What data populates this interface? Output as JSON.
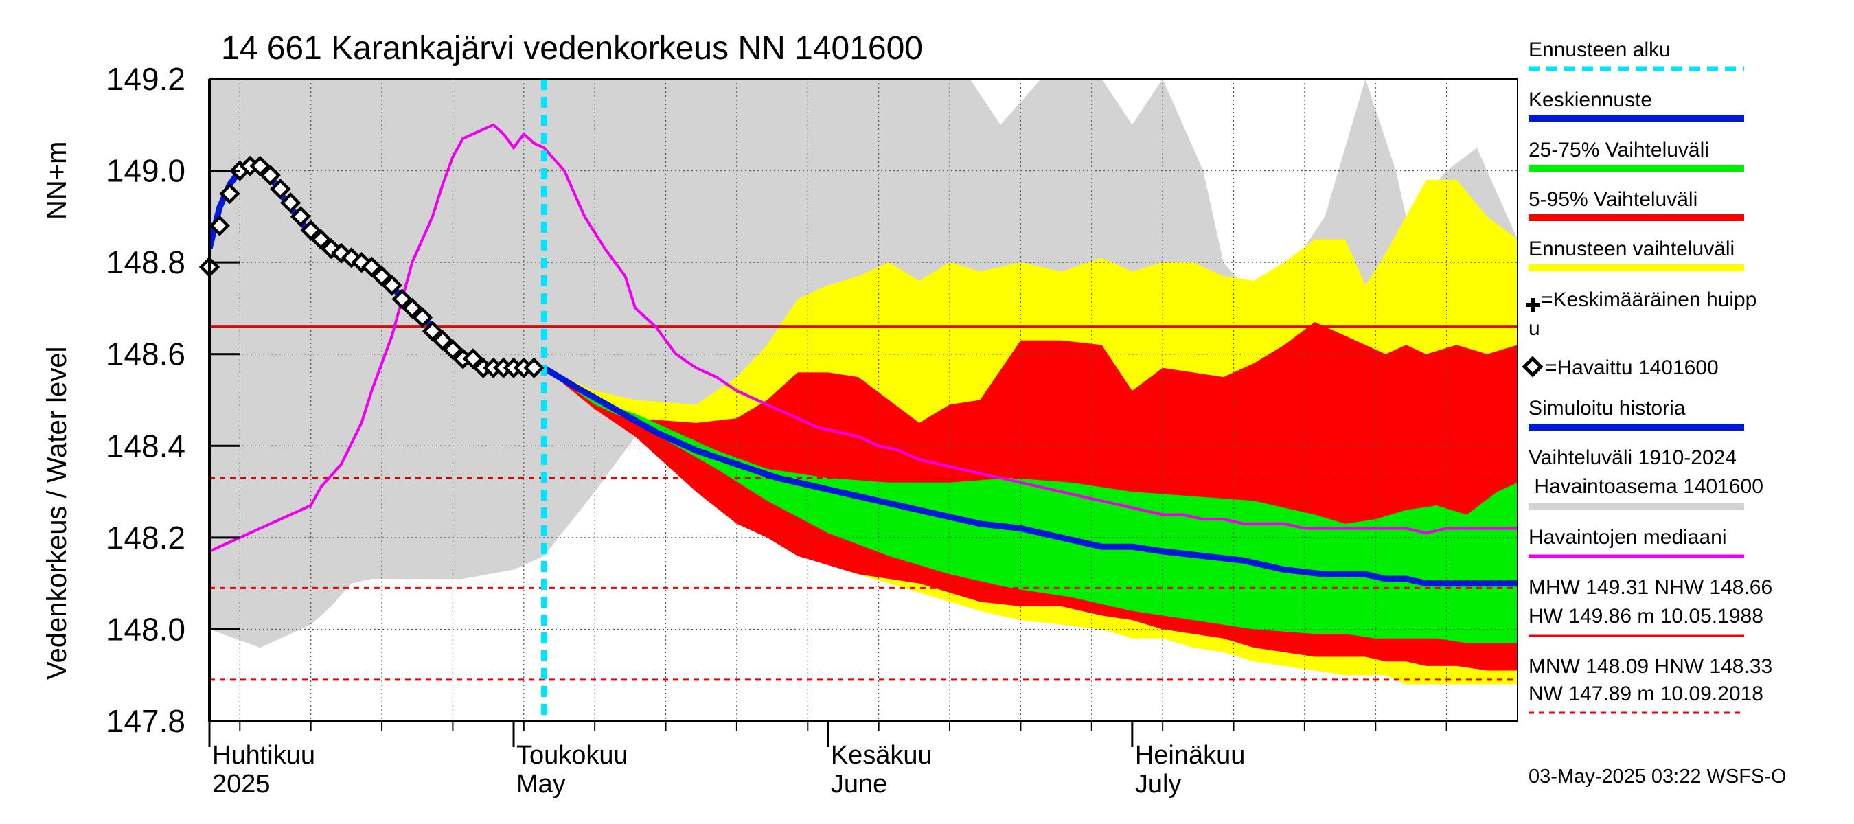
{
  "chart_data": {
    "type": "area",
    "title": "14 661 Karankajärvi vedenkorkeus NN 1401600",
    "ylabel_main": "Vedenkorkeus / Water level",
    "ylabel_unit": "NN+m",
    "ylim": [
      147.8,
      149.2
    ],
    "yticks": [
      "147.8",
      "148.0",
      "148.2",
      "148.4",
      "148.6",
      "148.8",
      "149.0",
      "149.2"
    ],
    "x_range_days": [
      0,
      129
    ],
    "forecast_start_day": 33,
    "months": [
      {
        "day": 0,
        "fi": "Huhtikuu",
        "en": "2025"
      },
      {
        "day": 30,
        "fi": "Toukokuu",
        "en": "May"
      },
      {
        "day": 61,
        "fi": "Kesäkuu",
        "en": "June"
      },
      {
        "day": 91,
        "fi": "Heinäkuu",
        "en": "July"
      }
    ],
    "hlines": [
      {
        "name": "MHW",
        "value": 149.31,
        "style": "dashed"
      },
      {
        "name": "NHW",
        "value": 148.66,
        "style": "solid"
      },
      {
        "name": "HNW",
        "value": 148.33,
        "style": "dashed"
      },
      {
        "name": "MNW",
        "value": 148.09,
        "style": "dashed"
      },
      {
        "name": "NW",
        "value": 147.89,
        "style": "dashed"
      }
    ],
    "historical_range": {
      "days": [
        0,
        5,
        8,
        10,
        12,
        14,
        16,
        20,
        25,
        30,
        33,
        38,
        42,
        48,
        55,
        61,
        67,
        72,
        75,
        78,
        82,
        88,
        91,
        94,
        96,
        98,
        100,
        104,
        110,
        114,
        117,
        118,
        120,
        122,
        125,
        129
      ],
      "upper": [
        149.2,
        149.2,
        149.2,
        149.2,
        149.2,
        149.2,
        149.2,
        149.2,
        149.2,
        149.2,
        149.2,
        149.2,
        149.2,
        149.2,
        149.2,
        149.2,
        149.2,
        149.2,
        149.2,
        149.1,
        149.2,
        149.2,
        149.1,
        149.2,
        149.1,
        149.0,
        148.8,
        148.7,
        148.9,
        149.2,
        149.0,
        148.9,
        148.95,
        149.0,
        149.05,
        148.85
      ],
      "lower": [
        148.0,
        147.96,
        147.99,
        148.01,
        148.05,
        148.1,
        148.11,
        148.11,
        148.11,
        148.13,
        148.16,
        148.3,
        148.42,
        148.49,
        148.51,
        148.53,
        148.53,
        148.53,
        148.53,
        148.53,
        148.53,
        148.53,
        148.53,
        148.53,
        148.53,
        148.53,
        148.53,
        148.53,
        148.53,
        148.53,
        148.53,
        148.53,
        148.53,
        148.53,
        148.53,
        148.53
      ]
    },
    "forecast_range_5_95_total": {
      "days": [
        33,
        38,
        42,
        48,
        52,
        55,
        58,
        61,
        64,
        67,
        70,
        73,
        76,
        80,
        84,
        88,
        91,
        94,
        97,
        100,
        103,
        106,
        109,
        112,
        114,
        116,
        118,
        120,
        123,
        126,
        129
      ],
      "upper": [
        148.57,
        148.52,
        148.5,
        148.49,
        148.55,
        148.62,
        148.72,
        148.75,
        148.77,
        148.8,
        148.76,
        148.8,
        148.78,
        148.8,
        148.78,
        148.81,
        148.78,
        148.8,
        148.8,
        148.77,
        148.76,
        148.8,
        148.85,
        148.85,
        148.75,
        148.82,
        148.9,
        148.98,
        148.98,
        148.9,
        148.85
      ],
      "lower": [
        148.57,
        148.49,
        148.43,
        148.32,
        148.26,
        148.22,
        148.17,
        148.15,
        148.12,
        148.1,
        148.08,
        148.06,
        148.04,
        148.02,
        148.01,
        148.0,
        147.98,
        147.98,
        147.96,
        147.95,
        147.93,
        147.92,
        147.91,
        147.9,
        147.9,
        147.9,
        147.88,
        147.88,
        147.88,
        147.88,
        147.88
      ]
    },
    "band_5_95": {
      "days": [
        33,
        38,
        42,
        48,
        52,
        55,
        58,
        61,
        64,
        67,
        70,
        73,
        76,
        80,
        84,
        88,
        91,
        94,
        97,
        100,
        103,
        106,
        109,
        112,
        114,
        116,
        118,
        120,
        123,
        126,
        129
      ],
      "upper": [
        148.57,
        148.5,
        148.46,
        148.45,
        148.46,
        148.5,
        148.56,
        148.56,
        148.55,
        148.5,
        148.45,
        148.49,
        148.5,
        148.63,
        148.63,
        148.62,
        148.52,
        148.57,
        148.56,
        148.55,
        148.58,
        148.62,
        148.67,
        148.64,
        148.62,
        148.6,
        148.62,
        148.6,
        148.62,
        148.6,
        148.62
      ],
      "lower": [
        148.57,
        148.48,
        148.42,
        148.3,
        148.23,
        148.2,
        148.16,
        148.14,
        148.12,
        148.11,
        148.1,
        148.08,
        148.06,
        148.05,
        148.05,
        148.03,
        148.02,
        148.0,
        147.99,
        147.98,
        147.96,
        147.95,
        147.94,
        147.94,
        147.94,
        147.93,
        147.93,
        147.92,
        147.92,
        147.91,
        147.91
      ]
    },
    "band_25_75": {
      "days": [
        33,
        38,
        42,
        46,
        50,
        55,
        61,
        67,
        73,
        79,
        85,
        91,
        97,
        103,
        109,
        112,
        115,
        118,
        121,
        124,
        127,
        129
      ],
      "upper": [
        148.57,
        148.5,
        148.47,
        148.43,
        148.39,
        148.35,
        148.33,
        148.32,
        148.32,
        148.33,
        148.32,
        148.3,
        148.29,
        148.28,
        148.25,
        148.23,
        148.24,
        148.26,
        148.27,
        148.25,
        148.3,
        148.32
      ],
      "lower": [
        148.57,
        148.49,
        148.45,
        148.4,
        148.35,
        148.28,
        148.21,
        148.16,
        148.12,
        148.09,
        148.07,
        148.04,
        148.02,
        148.0,
        147.99,
        147.99,
        147.98,
        147.98,
        147.98,
        147.97,
        147.97,
        147.97
      ]
    },
    "mean_forecast": {
      "days": [
        33,
        36,
        40,
        44,
        48,
        52,
        56,
        60,
        64,
        68,
        72,
        76,
        80,
        84,
        88,
        91,
        94,
        98,
        102,
        106,
        110,
        112,
        114,
        116,
        118,
        120,
        122,
        124,
        126,
        129
      ],
      "values": [
        148.57,
        148.53,
        148.48,
        148.43,
        148.39,
        148.36,
        148.33,
        148.31,
        148.29,
        148.27,
        148.25,
        148.23,
        148.22,
        148.2,
        148.18,
        148.18,
        148.17,
        148.16,
        148.15,
        148.13,
        148.12,
        148.12,
        148.12,
        148.11,
        148.11,
        148.1,
        148.1,
        148.1,
        148.1,
        148.1
      ]
    },
    "simulated_history": {
      "days": [
        0,
        1,
        2,
        3,
        4,
        5,
        6,
        7,
        8,
        9,
        10,
        11,
        12,
        13,
        14,
        15,
        16,
        17,
        18,
        19,
        20,
        21,
        22,
        23,
        24,
        25,
        26,
        27,
        28,
        29,
        30,
        31,
        32,
        33
      ],
      "values": [
        148.83,
        148.92,
        148.97,
        149.0,
        149.02,
        149.01,
        148.99,
        148.95,
        148.92,
        148.89,
        148.86,
        148.84,
        148.83,
        148.82,
        148.81,
        148.8,
        148.79,
        148.77,
        148.75,
        148.72,
        148.7,
        148.68,
        148.66,
        148.64,
        148.62,
        148.6,
        148.59,
        148.57,
        148.57,
        148.57,
        148.57,
        148.57,
        148.57,
        148.57
      ]
    },
    "observed": {
      "days": [
        0,
        1,
        2,
        3,
        4,
        5,
        6,
        7,
        8,
        9,
        10,
        11,
        12,
        13,
        14,
        15,
        16,
        17,
        18,
        19,
        20,
        21,
        22,
        23,
        24,
        25,
        26,
        27,
        28,
        29,
        30,
        31,
        32
      ],
      "values": [
        148.79,
        148.88,
        148.95,
        149.0,
        149.01,
        149.01,
        148.99,
        148.96,
        148.93,
        148.9,
        148.87,
        148.85,
        148.83,
        148.82,
        148.81,
        148.8,
        148.79,
        148.77,
        148.75,
        148.72,
        148.7,
        148.68,
        148.65,
        148.63,
        148.61,
        148.59,
        148.59,
        148.57,
        148.57,
        148.57,
        148.57,
        148.57,
        148.57
      ]
    },
    "median": {
      "days": [
        0,
        2,
        4,
        6,
        8,
        10,
        11,
        13,
        15,
        16,
        18,
        19,
        20,
        22,
        23,
        24,
        25,
        26,
        28,
        29,
        30,
        31,
        32,
        33,
        35,
        36,
        37,
        39,
        41,
        42,
        44,
        46,
        48,
        50,
        52,
        54,
        56,
        58,
        60,
        62,
        64,
        66,
        68,
        70,
        72,
        74,
        76,
        78,
        80,
        82,
        84,
        86,
        88,
        90,
        92,
        94,
        96,
        98,
        100,
        102,
        104,
        106,
        108,
        110,
        112,
        114,
        116,
        118,
        120,
        122,
        124,
        126,
        129
      ],
      "values": [
        148.17,
        148.19,
        148.21,
        148.23,
        148.25,
        148.27,
        148.31,
        148.36,
        148.45,
        148.52,
        148.64,
        148.72,
        148.8,
        148.9,
        148.97,
        149.03,
        149.07,
        149.08,
        149.1,
        149.08,
        149.05,
        149.08,
        149.06,
        149.05,
        149.0,
        148.95,
        148.9,
        148.83,
        148.77,
        148.7,
        148.66,
        148.6,
        148.57,
        148.55,
        148.52,
        148.5,
        148.48,
        148.46,
        148.44,
        148.43,
        148.42,
        148.4,
        148.39,
        148.37,
        148.36,
        148.35,
        148.34,
        148.33,
        148.32,
        148.31,
        148.3,
        148.29,
        148.28,
        148.27,
        148.26,
        148.25,
        148.25,
        148.24,
        148.24,
        148.23,
        148.23,
        148.23,
        148.22,
        148.22,
        148.22,
        148.22,
        148.22,
        148.22,
        148.21,
        148.22,
        148.22,
        148.22,
        148.22
      ]
    }
  },
  "legend": {
    "forecast_start": {
      "label": "Ennusteen alku",
      "color": "#00e5ff"
    },
    "mean_forecast": {
      "label": "Keskiennuste",
      "color": "#0018d8"
    },
    "range_25_75": {
      "label": "25-75% Vaihteluväli",
      "color": "#00ee00"
    },
    "range_5_95": {
      "label": "5-95% Vaihteluväli",
      "color": "#ff0000"
    },
    "forecast_range": {
      "label": "Ennusteen vaihteluväli",
      "color": "#ffff00"
    },
    "avg_peak_line1": "=Keskimääräinen huipp",
    "avg_peak_line2": "u",
    "observed": {
      "label": "=Havaittu 1401600",
      "color": "#000000"
    },
    "simulated": {
      "label": "Simuloitu historia",
      "color": "#0018d8"
    },
    "historical_line1": "Vaihteluväli 1910-2024",
    "historical_line2": " Havaintoasema 1401600",
    "historical_color": "#d3d3d3",
    "median": {
      "label": "Havaintojen mediaani",
      "color": "#ee00ee"
    },
    "stats_a1": "MHW 149.31 NHW 148.66",
    "stats_a2": "HW 149.86 m 10.05.1988",
    "stats_b1": "MNW 148.09 HNW 148.33",
    "stats_b2": "NW 147.89 m 10.09.2018",
    "ref_line_color": "#ee0000"
  },
  "footer": "03-May-2025 03:22 WSFS-O"
}
